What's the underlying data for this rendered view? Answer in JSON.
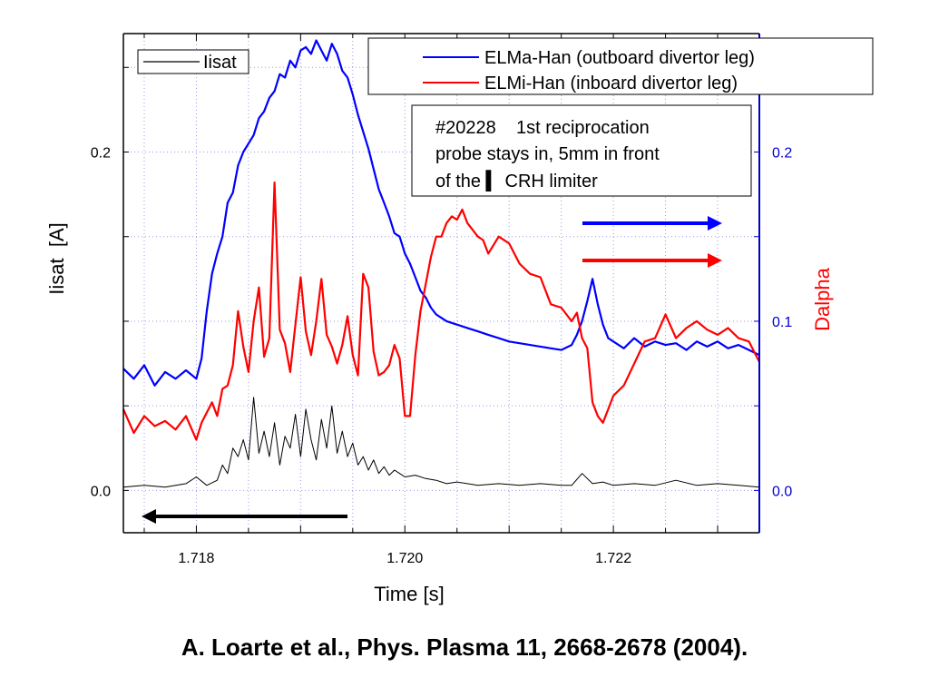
{
  "chart_data": {
    "type": "line",
    "xlabel": "Time [s]",
    "ylabel_left": "Iisat  [A]",
    "ylabel_right": "Dalpha",
    "xlim": [
      1.7173,
      1.7234
    ],
    "ylim_left": [
      -0.025,
      0.27
    ],
    "ylim_right": [
      -0.025,
      0.27
    ],
    "x_ticks": [
      "1.718",
      "1.720",
      "1.722"
    ],
    "x_tick_values": [
      1.718,
      1.72,
      1.722
    ],
    "y_left_ticks": [
      "0.0",
      "0.2"
    ],
    "y_left_tick_values": [
      0.0,
      0.2
    ],
    "y_right_ticks": [
      "0.0",
      "0.1",
      "0.2"
    ],
    "y_right_tick_values": [
      0.0,
      0.1,
      0.2
    ],
    "grid": true,
    "colors": {
      "iisat": "#000000",
      "elma": "#0000ff",
      "elmi": "#ff0000",
      "right_axis": "#0000cc"
    },
    "series": [
      {
        "name": "ELMa-Han (outboard divertor leg)",
        "axis": "right",
        "color": "#0000ff",
        "x": [
          1.7173,
          1.7174,
          1.7175,
          1.7176,
          1.7177,
          1.7178,
          1.7179,
          1.718,
          1.71805,
          1.7181,
          1.71815,
          1.7182,
          1.71825,
          1.7183,
          1.71835,
          1.7184,
          1.71845,
          1.7185,
          1.71855,
          1.7186,
          1.71865,
          1.7187,
          1.71875,
          1.7188,
          1.71885,
          1.7189,
          1.71895,
          1.719,
          1.71905,
          1.7191,
          1.71915,
          1.7192,
          1.71925,
          1.7193,
          1.71935,
          1.7194,
          1.71945,
          1.7195,
          1.71955,
          1.7196,
          1.71965,
          1.7197,
          1.71975,
          1.7198,
          1.71985,
          1.7199,
          1.71995,
          1.72,
          1.72005,
          1.7201,
          1.72015,
          1.7202,
          1.72025,
          1.7203,
          1.72035,
          1.7204,
          1.7205,
          1.7206,
          1.7207,
          1.7208,
          1.7209,
          1.721,
          1.7211,
          1.7212,
          1.7213,
          1.7214,
          1.7215,
          1.7216,
          1.72165,
          1.7217,
          1.72175,
          1.7218,
          1.72185,
          1.7219,
          1.72195,
          1.722,
          1.7221,
          1.7222,
          1.7223,
          1.7224,
          1.7225,
          1.7226,
          1.7227,
          1.7228,
          1.7229,
          1.723,
          1.7231,
          1.7232,
          1.7233,
          1.7234
        ],
        "y": [
          0.072,
          0.066,
          0.074,
          0.062,
          0.07,
          0.066,
          0.071,
          0.066,
          0.078,
          0.106,
          0.128,
          0.14,
          0.15,
          0.17,
          0.176,
          0.192,
          0.2,
          0.205,
          0.21,
          0.22,
          0.224,
          0.232,
          0.236,
          0.246,
          0.244,
          0.254,
          0.25,
          0.26,
          0.262,
          0.258,
          0.266,
          0.26,
          0.254,
          0.264,
          0.258,
          0.248,
          0.244,
          0.234,
          0.222,
          0.212,
          0.202,
          0.19,
          0.178,
          0.17,
          0.162,
          0.152,
          0.15,
          0.14,
          0.134,
          0.126,
          0.118,
          0.114,
          0.108,
          0.104,
          0.102,
          0.1,
          0.098,
          0.096,
          0.094,
          0.092,
          0.09,
          0.088,
          0.087,
          0.086,
          0.085,
          0.084,
          0.083,
          0.086,
          0.092,
          0.1,
          0.112,
          0.125,
          0.11,
          0.098,
          0.09,
          0.088,
          0.084,
          0.09,
          0.085,
          0.088,
          0.086,
          0.087,
          0.083,
          0.088,
          0.085,
          0.088,
          0.084,
          0.086,
          0.083,
          0.08
        ]
      },
      {
        "name": "ELMi-Han (inboard divertor leg)",
        "axis": "right",
        "color": "#ff0000",
        "x": [
          1.7173,
          1.7174,
          1.7175,
          1.7176,
          1.7177,
          1.7178,
          1.7179,
          1.718,
          1.71805,
          1.7181,
          1.71815,
          1.7182,
          1.71825,
          1.7183,
          1.71835,
          1.7184,
          1.71845,
          1.7185,
          1.71855,
          1.7186,
          1.71865,
          1.7187,
          1.71875,
          1.7188,
          1.71885,
          1.7189,
          1.71895,
          1.719,
          1.71905,
          1.7191,
          1.71915,
          1.7192,
          1.71925,
          1.7193,
          1.71935,
          1.7194,
          1.71945,
          1.7195,
          1.71955,
          1.7196,
          1.71965,
          1.7197,
          1.71975,
          1.7198,
          1.71985,
          1.7199,
          1.71995,
          1.72,
          1.72005,
          1.7201,
          1.72015,
          1.7202,
          1.72025,
          1.7203,
          1.72035,
          1.7204,
          1.72045,
          1.7205,
          1.72055,
          1.7206,
          1.72065,
          1.7207,
          1.72075,
          1.7208,
          1.7209,
          1.721,
          1.7211,
          1.7212,
          1.7213,
          1.7214,
          1.7215,
          1.7216,
          1.72165,
          1.7217,
          1.72175,
          1.7218,
          1.72185,
          1.7219,
          1.72195,
          1.722,
          1.7221,
          1.7222,
          1.7223,
          1.7224,
          1.7225,
          1.7226,
          1.7227,
          1.7228,
          1.7229,
          1.723,
          1.7231,
          1.7232,
          1.7233,
          1.7234
        ],
        "y": [
          0.048,
          0.034,
          0.044,
          0.038,
          0.041,
          0.036,
          0.044,
          0.03,
          0.04,
          0.046,
          0.052,
          0.044,
          0.06,
          0.062,
          0.074,
          0.106,
          0.085,
          0.07,
          0.1,
          0.12,
          0.079,
          0.09,
          0.182,
          0.095,
          0.087,
          0.07,
          0.098,
          0.126,
          0.094,
          0.08,
          0.1,
          0.125,
          0.092,
          0.085,
          0.075,
          0.086,
          0.103,
          0.08,
          0.068,
          0.128,
          0.12,
          0.082,
          0.068,
          0.07,
          0.074,
          0.086,
          0.078,
          0.044,
          0.044,
          0.08,
          0.106,
          0.122,
          0.138,
          0.15,
          0.15,
          0.158,
          0.162,
          0.16,
          0.166,
          0.158,
          0.154,
          0.15,
          0.148,
          0.14,
          0.15,
          0.146,
          0.134,
          0.128,
          0.126,
          0.11,
          0.108,
          0.1,
          0.105,
          0.09,
          0.084,
          0.052,
          0.044,
          0.04,
          0.048,
          0.056,
          0.062,
          0.075,
          0.088,
          0.09,
          0.104,
          0.09,
          0.096,
          0.1,
          0.095,
          0.092,
          0.096,
          0.09,
          0.088,
          0.076
        ]
      },
      {
        "name": "Iisat",
        "axis": "left",
        "color": "#000000",
        "x": [
          1.7173,
          1.7175,
          1.7177,
          1.7179,
          1.718,
          1.7181,
          1.7182,
          1.71825,
          1.7183,
          1.71835,
          1.7184,
          1.71845,
          1.7185,
          1.71855,
          1.7186,
          1.71865,
          1.7187,
          1.71875,
          1.7188,
          1.71885,
          1.7189,
          1.71895,
          1.719,
          1.71905,
          1.7191,
          1.71915,
          1.7192,
          1.71925,
          1.7193,
          1.71935,
          1.7194,
          1.71945,
          1.7195,
          1.71955,
          1.7196,
          1.71965,
          1.7197,
          1.71975,
          1.7198,
          1.71985,
          1.7199,
          1.71995,
          1.72,
          1.7201,
          1.7202,
          1.7203,
          1.7204,
          1.7205,
          1.7207,
          1.7209,
          1.7211,
          1.7213,
          1.7215,
          1.7216,
          1.7217,
          1.7218,
          1.7219,
          1.722,
          1.7222,
          1.7224,
          1.7226,
          1.7228,
          1.723,
          1.7232,
          1.7234
        ],
        "y": [
          0.002,
          0.003,
          0.002,
          0.004,
          0.008,
          0.003,
          0.006,
          0.015,
          0.01,
          0.025,
          0.02,
          0.03,
          0.018,
          0.055,
          0.022,
          0.035,
          0.02,
          0.04,
          0.015,
          0.032,
          0.025,
          0.045,
          0.02,
          0.048,
          0.03,
          0.018,
          0.042,
          0.025,
          0.05,
          0.022,
          0.035,
          0.02,
          0.028,
          0.015,
          0.02,
          0.012,
          0.018,
          0.01,
          0.014,
          0.009,
          0.012,
          0.01,
          0.008,
          0.009,
          0.007,
          0.006,
          0.004,
          0.005,
          0.003,
          0.004,
          0.003,
          0.004,
          0.003,
          0.003,
          0.01,
          0.004,
          0.005,
          0.003,
          0.004,
          0.003,
          0.006,
          0.003,
          0.004,
          0.003,
          0.002
        ]
      }
    ],
    "legend_main": {
      "label": "Iisat",
      "placement": "top-left"
    },
    "legend_dalpha": {
      "labels": [
        "ELMa-Han (outboard divertor leg)",
        "ELMi-Han (inboard divertor leg)"
      ],
      "placement": "top-right"
    },
    "annotation": {
      "lines": [
        "#20228    1st reciprocation",
        "probe stays in, 5mm in front",
        "of the ▍ CRH limiter"
      ]
    },
    "arrows": [
      {
        "direction": "left",
        "color": "#000000",
        "meaning": "Iisat uses left axis"
      },
      {
        "direction": "right",
        "color": "#0000ff",
        "meaning": "ELMa uses right axis"
      },
      {
        "direction": "right",
        "color": "#ff0000",
        "meaning": "ELMi uses right axis"
      }
    ]
  },
  "citation": "A. Loarte et al., Phys. Plasma 11, 2668-2678 (2004)."
}
